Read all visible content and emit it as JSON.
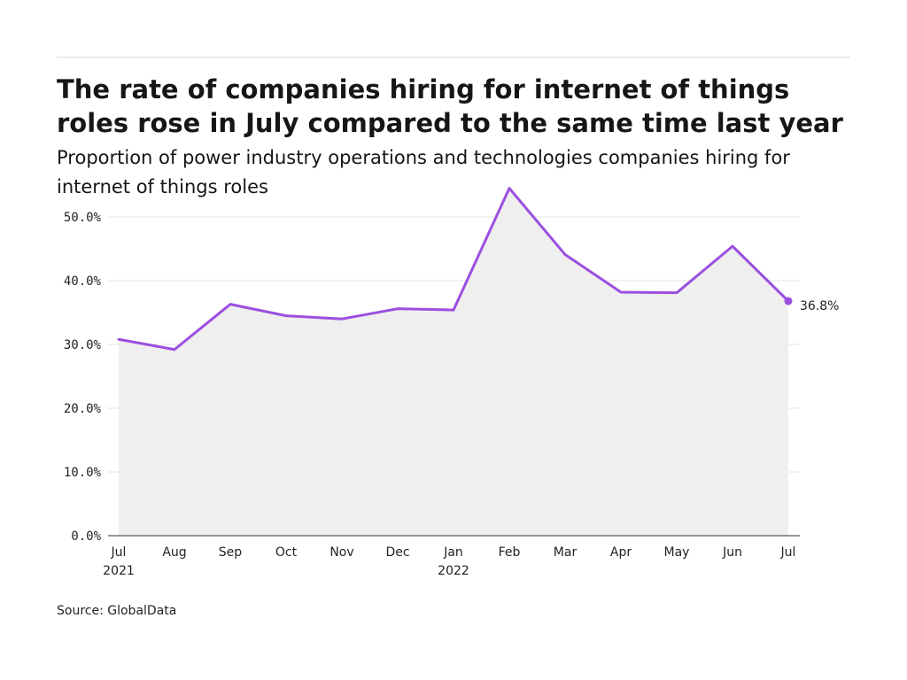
{
  "header": {
    "title": "The rate of companies hiring for internet of things roles rose in July compared to the same time last year",
    "subtitle": "Proportion of power industry operations and technologies companies hiring for internet of things roles"
  },
  "footer": {
    "source": "Source: GlobalData"
  },
  "colors": {
    "line": "#9b4fe0",
    "area": "#efefef",
    "grid": "#e3e3e3",
    "axis": "#333333"
  },
  "chart_data": {
    "type": "area",
    "title": "The rate of companies hiring for internet of things roles rose in July compared to the same time last year",
    "subtitle": "Proportion of power industry operations and technologies companies hiring for internet of things roles",
    "xlabel": "",
    "ylabel": "",
    "x": [
      "Jul 2021",
      "Aug 2021",
      "Sep 2021",
      "Oct 2021",
      "Nov 2021",
      "Dec 2021",
      "Jan 2022",
      "Feb 2022",
      "Mar 2022",
      "Apr 2022",
      "May 2022",
      "Jun 2022",
      "Jul 2022"
    ],
    "x_tick_labels": [
      {
        "month": "Jul",
        "year": "2021"
      },
      {
        "month": "Aug",
        "year": ""
      },
      {
        "month": "Sep",
        "year": ""
      },
      {
        "month": "Oct",
        "year": ""
      },
      {
        "month": "Nov",
        "year": ""
      },
      {
        "month": "Dec",
        "year": ""
      },
      {
        "month": "Jan",
        "year": "2022"
      },
      {
        "month": "Feb",
        "year": ""
      },
      {
        "month": "Mar",
        "year": ""
      },
      {
        "month": "Apr",
        "year": ""
      },
      {
        "month": "May",
        "year": ""
      },
      {
        "month": "Jun",
        "year": ""
      },
      {
        "month": "Jul",
        "year": ""
      }
    ],
    "series": [
      {
        "values": [
          30.8,
          29.2,
          36.3,
          34.5,
          34.0,
          35.6,
          35.4,
          54.5,
          44.1,
          38.2,
          38.1,
          45.4,
          36.8
        ]
      }
    ],
    "y_ticks": [
      0,
      10,
      20,
      30,
      40,
      50
    ],
    "y_tick_labels": [
      "0.0%",
      "10.0%",
      "20.0%",
      "30.0%",
      "40.0%",
      "50.0%"
    ],
    "ylim": [
      0,
      55
    ],
    "grid": true,
    "end_label": "36.8%"
  }
}
